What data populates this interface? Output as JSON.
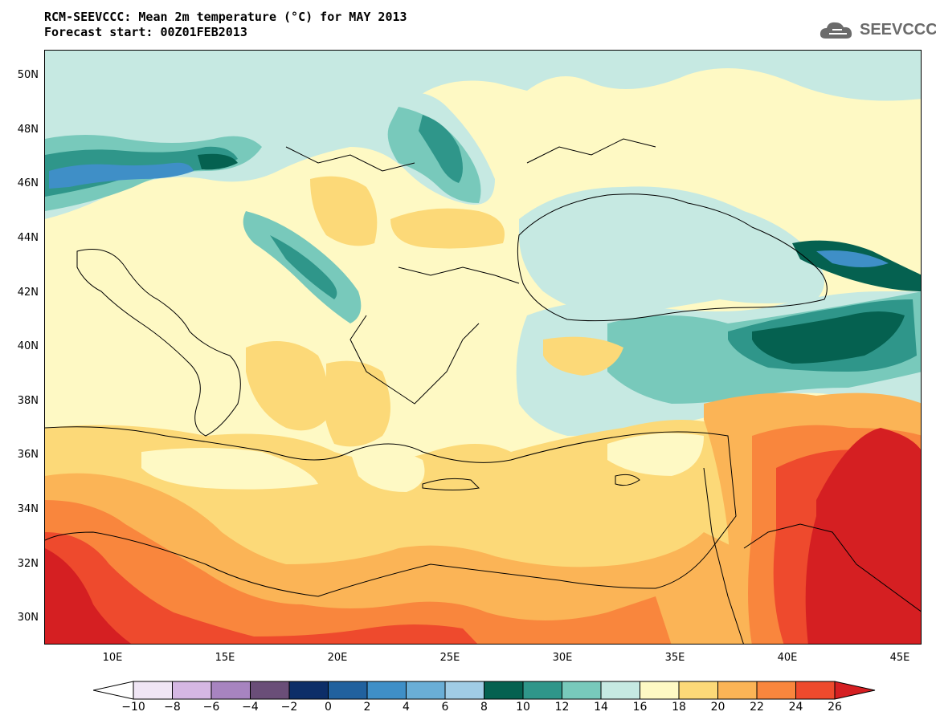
{
  "title_line1": "RCM-SEEVCCC: Mean 2m temperature (°C) for MAY 2013",
  "title_line2": "Forecast start: 00Z01FEB2013",
  "logo_text": "SEEVCCC",
  "lat_labels": [
    "50N",
    "48N",
    "46N",
    "44N",
    "42N",
    "40N",
    "38N",
    "36N",
    "34N",
    "32N",
    "30N"
  ],
  "lon_labels": [
    "10E",
    "15E",
    "20E",
    "25E",
    "30E",
    "35E",
    "40E",
    "45E"
  ],
  "colorbar": {
    "labels": [
      "-10",
      "-8",
      "-6",
      "-4",
      "-2",
      "0",
      "2",
      "4",
      "6",
      "8",
      "10",
      "12",
      "14",
      "16",
      "18",
      "20",
      "22",
      "24",
      "26"
    ],
    "colors": [
      "#ffffff",
      "#f0e6f5",
      "#d5b7e3",
      "#a784c0",
      "#6a4e78",
      "#0d2e68",
      "#21619e",
      "#3f8fc7",
      "#6aaed6",
      "#a0cce5",
      "#056150",
      "#2f968a",
      "#78c9bb",
      "#c6e9e2",
      "#fef9c4",
      "#fcd978",
      "#fbb456",
      "#f9863d",
      "#ee4a2d",
      "#d51f22"
    ]
  }
}
